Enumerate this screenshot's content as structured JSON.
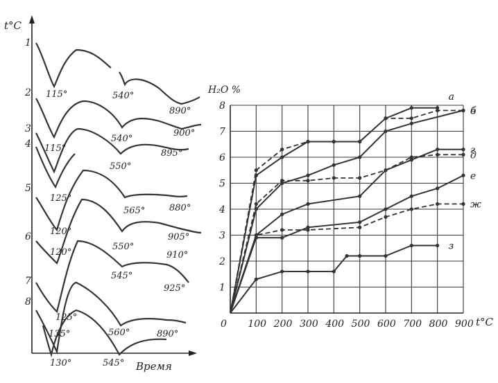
{
  "chart_data": [
    {
      "type": "line",
      "title": "",
      "ylabel": "t°C",
      "xlabel": "Время",
      "curves": [
        {
          "name": "1",
          "peaks": [
            "115°",
            "540°",
            "890°"
          ]
        },
        {
          "name": "2",
          "peaks": [
            "115°",
            "540°",
            "900°"
          ]
        },
        {
          "name": "3",
          "peaks": [
            "550°",
            "895°"
          ]
        },
        {
          "name": "4",
          "peaks": [
            "125°"
          ]
        },
        {
          "name": "5",
          "peaks": [
            "120°",
            "565°",
            "880°"
          ]
        },
        {
          "name": "6",
          "peaks": [
            "120°",
            "550°",
            "905°",
            "910°"
          ]
        },
        {
          "name": "7",
          "peaks": [
            "545°",
            "925°"
          ]
        },
        {
          "name": "8",
          "peaks": [
            "125°",
            "135°",
            "560°",
            "890°",
            "130°",
            "545°"
          ]
        }
      ]
    },
    {
      "type": "line",
      "title": "",
      "ylabel": "H₂O %",
      "xlabel": "t°C",
      "xlim": [
        0,
        900
      ],
      "ylim": [
        0,
        8
      ],
      "x_ticks": [
        0,
        100,
        200,
        300,
        400,
        500,
        600,
        700,
        800,
        900
      ],
      "y_ticks": [
        1,
        2,
        3,
        4,
        5,
        6,
        7,
        8
      ],
      "grid": true,
      "series": [
        {
          "name": "а",
          "style": "solid",
          "points": [
            [
              0,
              0
            ],
            [
              100,
              5.3
            ],
            [
              200,
              6.0
            ],
            [
              300,
              6.6
            ],
            [
              400,
              6.6
            ],
            [
              500,
              6.6
            ],
            [
              600,
              7.5
            ],
            [
              700,
              7.9
            ],
            [
              800,
              7.9
            ]
          ]
        },
        {
          "name": "б",
          "style": "dashed",
          "points": [
            [
              0,
              0
            ],
            [
              100,
              5.5
            ],
            [
              200,
              6.3
            ],
            [
              300,
              6.6
            ],
            [
              400,
              6.6
            ],
            [
              500,
              6.6
            ],
            [
              600,
              7.5
            ],
            [
              700,
              7.5
            ],
            [
              800,
              7.8
            ],
            [
              900,
              7.8
            ]
          ]
        },
        {
          "name": "в",
          "style": "solid",
          "points": [
            [
              0,
              0
            ],
            [
              100,
              4.0
            ],
            [
              200,
              5.0
            ],
            [
              300,
              5.3
            ],
            [
              400,
              5.7
            ],
            [
              500,
              6.0
            ],
            [
              600,
              7.0
            ],
            [
              700,
              7.3
            ],
            [
              900,
              7.8
            ]
          ]
        },
        {
          "name": "г",
          "style": "solid",
          "points": [
            [
              0,
              0
            ],
            [
              100,
              3.0
            ],
            [
              200,
              3.8
            ],
            [
              300,
              4.2
            ],
            [
              500,
              4.5
            ],
            [
              600,
              5.5
            ],
            [
              700,
              5.9
            ],
            [
              800,
              6.3
            ],
            [
              900,
              6.3
            ]
          ]
        },
        {
          "name": "д",
          "style": "dashed",
          "points": [
            [
              0,
              0
            ],
            [
              100,
              4.2
            ],
            [
              200,
              5.1
            ],
            [
              300,
              5.1
            ],
            [
              400,
              5.2
            ],
            [
              500,
              5.2
            ],
            [
              600,
              5.5
            ],
            [
              700,
              6.0
            ],
            [
              800,
              6.1
            ],
            [
              900,
              6.1
            ]
          ]
        },
        {
          "name": "е",
          "style": "solid",
          "points": [
            [
              0,
              0
            ],
            [
              100,
              2.9
            ],
            [
              200,
              2.9
            ],
            [
              300,
              3.3
            ],
            [
              500,
              3.5
            ],
            [
              600,
              4.0
            ],
            [
              700,
              4.5
            ],
            [
              800,
              4.8
            ],
            [
              900,
              5.3
            ]
          ]
        },
        {
          "name": "ж",
          "style": "dashed",
          "points": [
            [
              0,
              0
            ],
            [
              100,
              3.0
            ],
            [
              200,
              3.2
            ],
            [
              300,
              3.2
            ],
            [
              500,
              3.3
            ],
            [
              600,
              3.7
            ],
            [
              700,
              4.0
            ],
            [
              800,
              4.2
            ],
            [
              900,
              4.2
            ]
          ]
        },
        {
          "name": "з",
          "style": "solid",
          "points": [
            [
              0,
              0
            ],
            [
              100,
              1.3
            ],
            [
              200,
              1.6
            ],
            [
              300,
              1.6
            ],
            [
              400,
              1.6
            ],
            [
              450,
              2.2
            ],
            [
              500,
              2.2
            ],
            [
              600,
              2.2
            ],
            [
              700,
              2.6
            ],
            [
              800,
              2.6
            ]
          ]
        }
      ]
    }
  ]
}
